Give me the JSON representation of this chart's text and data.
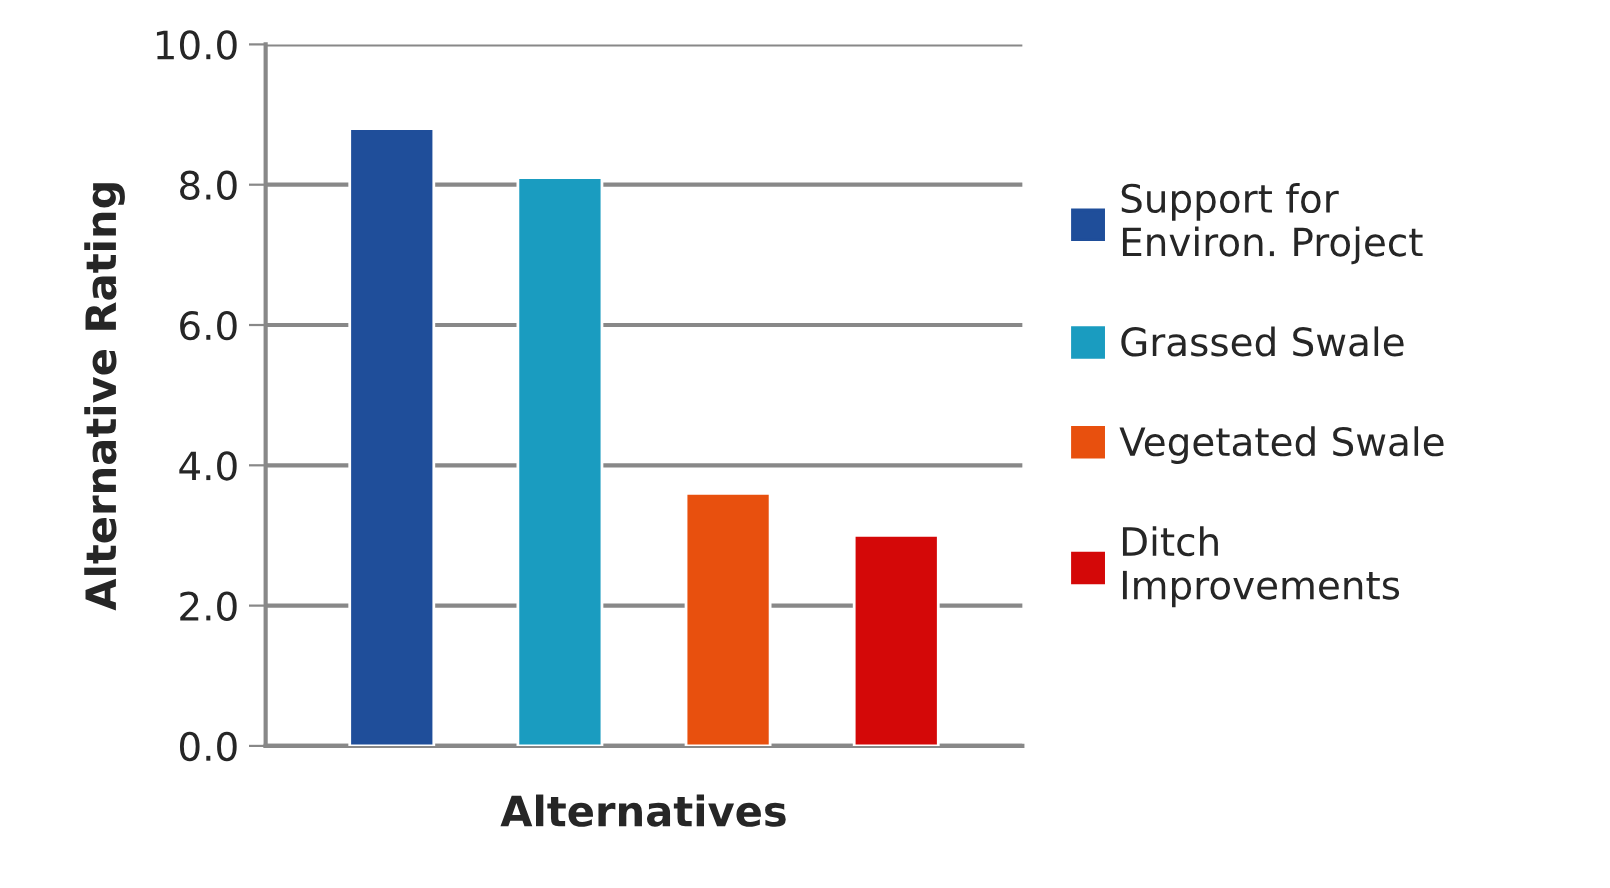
{
  "chart_data": {
    "type": "bar",
    "xlabel": "Alternatives",
    "ylabel": "Alternative Rating",
    "categories": [
      null
    ],
    "series": [
      {
        "name": "Support for\nEnviron. Project",
        "color": "#1f4e9a",
        "values": [
          8.8
        ]
      },
      {
        "name": "Grassed Swale",
        "color": "#1a9cc0",
        "values": [
          8.1
        ]
      },
      {
        "name": "Vegetated Swale",
        "color": "#e8500e",
        "values": [
          3.6
        ]
      },
      {
        "name": "Ditch\nImprovements",
        "color": "#d40808",
        "values": [
          3.0
        ]
      }
    ],
    "ylim": [
      0,
      10
    ],
    "yticks": [
      {
        "value": 0,
        "label": "0.0"
      },
      {
        "value": 2,
        "label": "2.0"
      },
      {
        "value": 4,
        "label": "4.0"
      },
      {
        "value": 6,
        "label": "6.0"
      },
      {
        "value": 8,
        "label": "8.0"
      },
      {
        "value": 10,
        "label": "10.0"
      }
    ],
    "grid": "y",
    "legend": "right"
  }
}
